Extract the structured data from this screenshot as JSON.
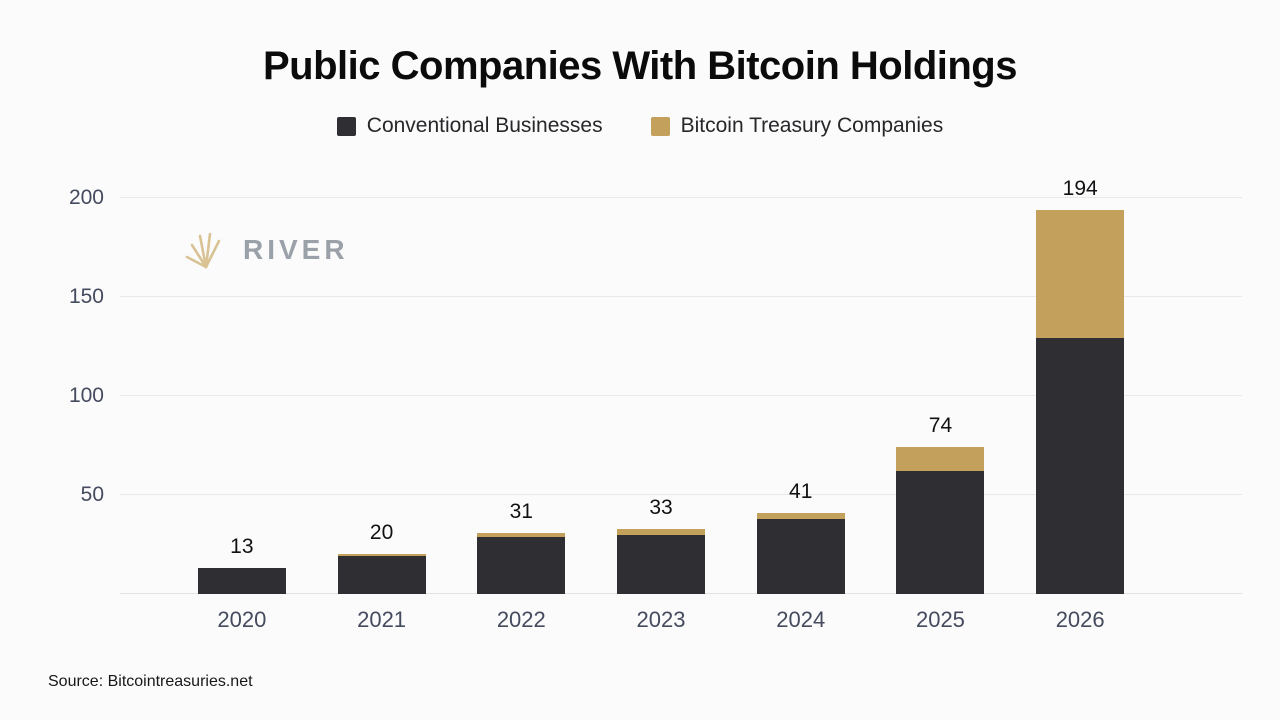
{
  "chart": {
    "title": "Public Companies With Bitcoin Holdings",
    "watermark": "RIVER",
    "source": "Source: Bitcointreasuries.net"
  },
  "chart_data": {
    "type": "bar",
    "stacked": true,
    "title": "Public Companies With Bitcoin Holdings",
    "categories": [
      "2020",
      "2021",
      "2022",
      "2023",
      "2024",
      "2025",
      "2026"
    ],
    "series": [
      {
        "name": "Conventional Businesses",
        "color": "#2e2e33",
        "values": [
          13,
          19,
          29,
          30,
          38,
          62,
          129
        ]
      },
      {
        "name": "Bitcoin Treasury Companies",
        "color": "#c3a05b",
        "values": [
          0,
          1,
          2,
          3,
          3,
          12,
          65
        ]
      }
    ],
    "totals": [
      13,
      20,
      31,
      33,
      41,
      74,
      194
    ],
    "yticks": [
      50,
      100,
      150,
      200
    ],
    "ylim": [
      0,
      219
    ],
    "grid": true,
    "legend_position": "top",
    "colors": {
      "background": "#fbfbfc",
      "gridline": "#e9e9ec",
      "axis_text": "#454b5e",
      "watermark_gold": "#d9c293",
      "watermark_gray": "#9ba1a9"
    }
  }
}
